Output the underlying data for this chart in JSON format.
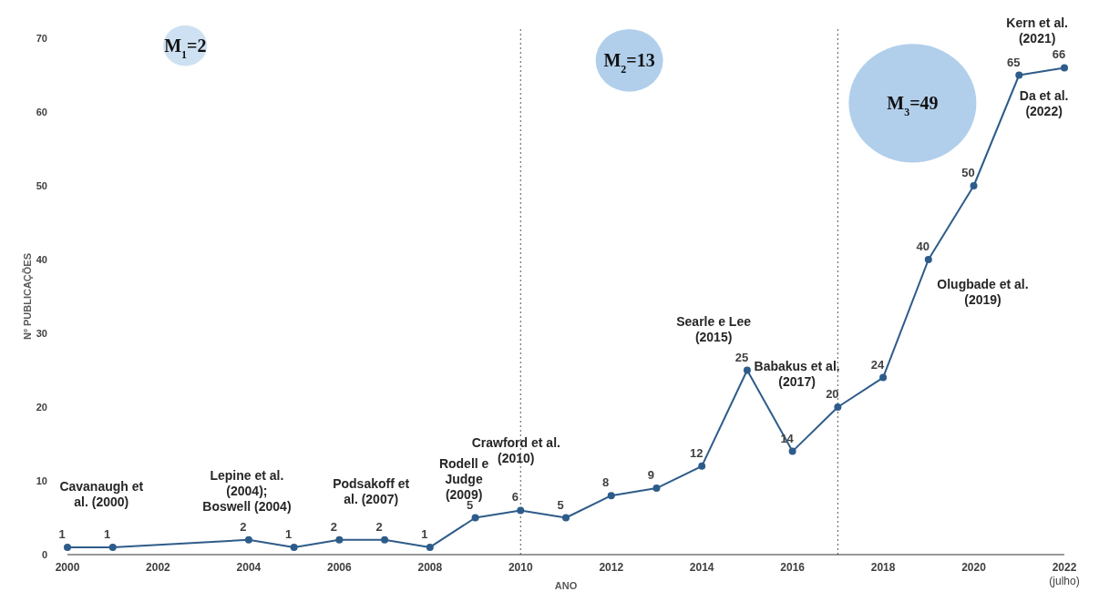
{
  "chart_data": {
    "type": "line",
    "xlabel": "ANO",
    "ylabel": "Nº PUBLICAÇÕES",
    "xlim": [
      2000,
      2022
    ],
    "ylim": [
      0,
      70
    ],
    "xticks": [
      2000,
      2002,
      2004,
      2006,
      2008,
      2010,
      2012,
      2014,
      2016,
      2018,
      2020,
      {
        "value": 2022,
        "label": "2022\n(julho)"
      }
    ],
    "yticks": [
      0,
      10,
      20,
      30,
      40,
      50,
      60,
      70
    ],
    "grid": false,
    "marker": "circle",
    "line_style": "solid",
    "data_labels": true,
    "series": [
      {
        "color": "#2e5c8a",
        "x": [
          2000,
          2001,
          2004,
          2005,
          2006,
          2007,
          2008,
          2009,
          2010,
          2011,
          2012,
          2013,
          2014,
          2015,
          2016,
          2017,
          2018,
          2019,
          2020,
          2021,
          2022
        ],
        "values": [
          1,
          1,
          2,
          1,
          2,
          2,
          1,
          5,
          6,
          5,
          8,
          9,
          12,
          25,
          14,
          20,
          24,
          40,
          50,
          65,
          66
        ]
      }
    ],
    "ref_lines": [
      {
        "axis": "x",
        "value": 2010,
        "line_style": "dotted"
      },
      {
        "axis": "x",
        "value": 2017,
        "line_style": "dotted"
      }
    ],
    "annotations": [
      "M$_{1}$=2",
      "M$_{2}$=13",
      "M$_{3}$=49",
      "Cavanaugh et al. (2000)",
      "Lepine et al. (2004); Boswell (2004)",
      "Podsakoff et al. (2007)",
      "Rodell e Judge (2009)",
      "Crawford et al. (2010)",
      "Searle e Lee (2015)",
      "Babakus et al. (2017)",
      "Olugbade et al. (2019)",
      "Kern et al. (2021)",
      "Da et al. (2022)"
    ]
  }
}
